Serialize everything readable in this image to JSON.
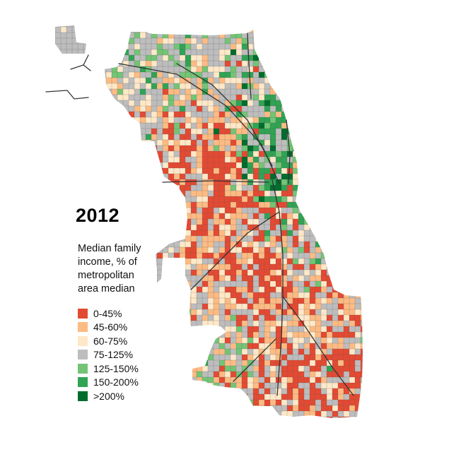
{
  "title": "2012",
  "legend": {
    "caption_lines": [
      "Median family",
      "income, % of",
      "metropolitan",
      "area median"
    ],
    "items": [
      {
        "label": "0-45%",
        "color": "#e34a33"
      },
      {
        "label": "45-60%",
        "color": "#fdbb84"
      },
      {
        "label": "60-75%",
        "color": "#fee8c8"
      },
      {
        "label": "75-125%",
        "color": "#bdbdbd"
      },
      {
        "label": "125-150%",
        "color": "#74c476"
      },
      {
        "label": "150-200%",
        "color": "#31a354"
      },
      {
        "label": ">200%",
        "color": "#006d2c"
      }
    ]
  },
  "map": {
    "region": "Chicago",
    "background": "#ffffff",
    "gridline_color": "#555555",
    "road_color": "#333333"
  }
}
